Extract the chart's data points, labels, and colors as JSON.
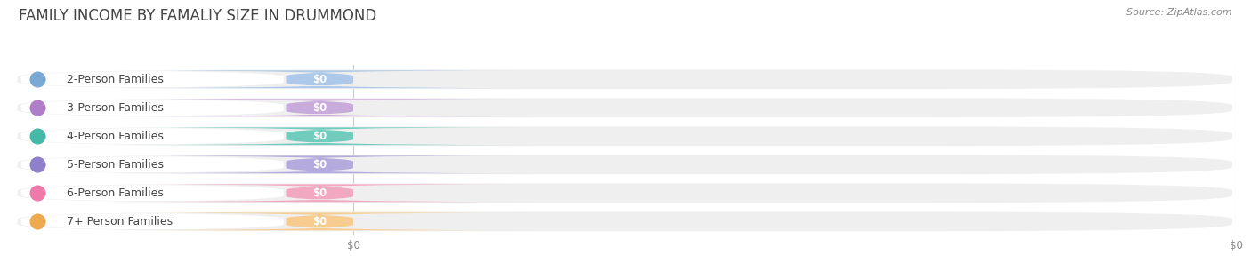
{
  "title": "FAMILY INCOME BY FAMALIY SIZE IN DRUMMOND",
  "source": "Source: ZipAtlas.com",
  "categories": [
    "2-Person Families",
    "3-Person Families",
    "4-Person Families",
    "5-Person Families",
    "6-Person Families",
    "7+ Person Families"
  ],
  "values": [
    0,
    0,
    0,
    0,
    0,
    0
  ],
  "bar_colors": [
    "#adc8e8",
    "#c8aadb",
    "#72ccbd",
    "#b4aadd",
    "#f2a8c0",
    "#f7cc90"
  ],
  "dot_colors": [
    "#7aaad4",
    "#b07ec8",
    "#45b8a8",
    "#9080cc",
    "#ee7aaa",
    "#eeaa50"
  ],
  "background_color": "#ffffff",
  "bar_bg_color": "#efefef",
  "white_pill_color": "#ffffff",
  "axis_line_color": "#cccccc",
  "text_color": "#444444",
  "source_color": "#888888",
  "tick_label_color": "#888888",
  "title_fontsize": 12,
  "source_fontsize": 8,
  "cat_fontsize": 9,
  "val_fontsize": 8.5
}
